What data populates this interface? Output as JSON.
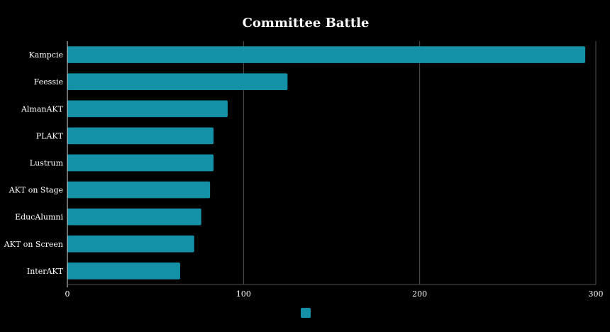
{
  "colors": {
    "background": "#000000",
    "bar": "#1490a7",
    "grid": "#555555",
    "axis": "#dddddd",
    "text": "#ffffff"
  },
  "chart_data": {
    "type": "bar",
    "orientation": "horizontal",
    "title": "Committee Battle",
    "xlabel": "",
    "ylabel": "",
    "categories": [
      "Kampcie",
      "Feessie",
      "AlmanAKT",
      "PLAKT",
      "Lustrum",
      "AKT on Stage",
      "EducAlumni",
      "AKT on Screen",
      "InterAKT"
    ],
    "values": [
      294,
      125,
      91,
      83,
      83,
      81,
      76,
      72,
      64
    ],
    "xlim": [
      0,
      300
    ],
    "x_ticks": [
      0,
      100,
      200,
      300
    ],
    "grid": "vertical",
    "legend": {
      "position": "bottom",
      "entries": [
        {
          "name": "",
          "color": "#1490a7"
        }
      ]
    }
  }
}
